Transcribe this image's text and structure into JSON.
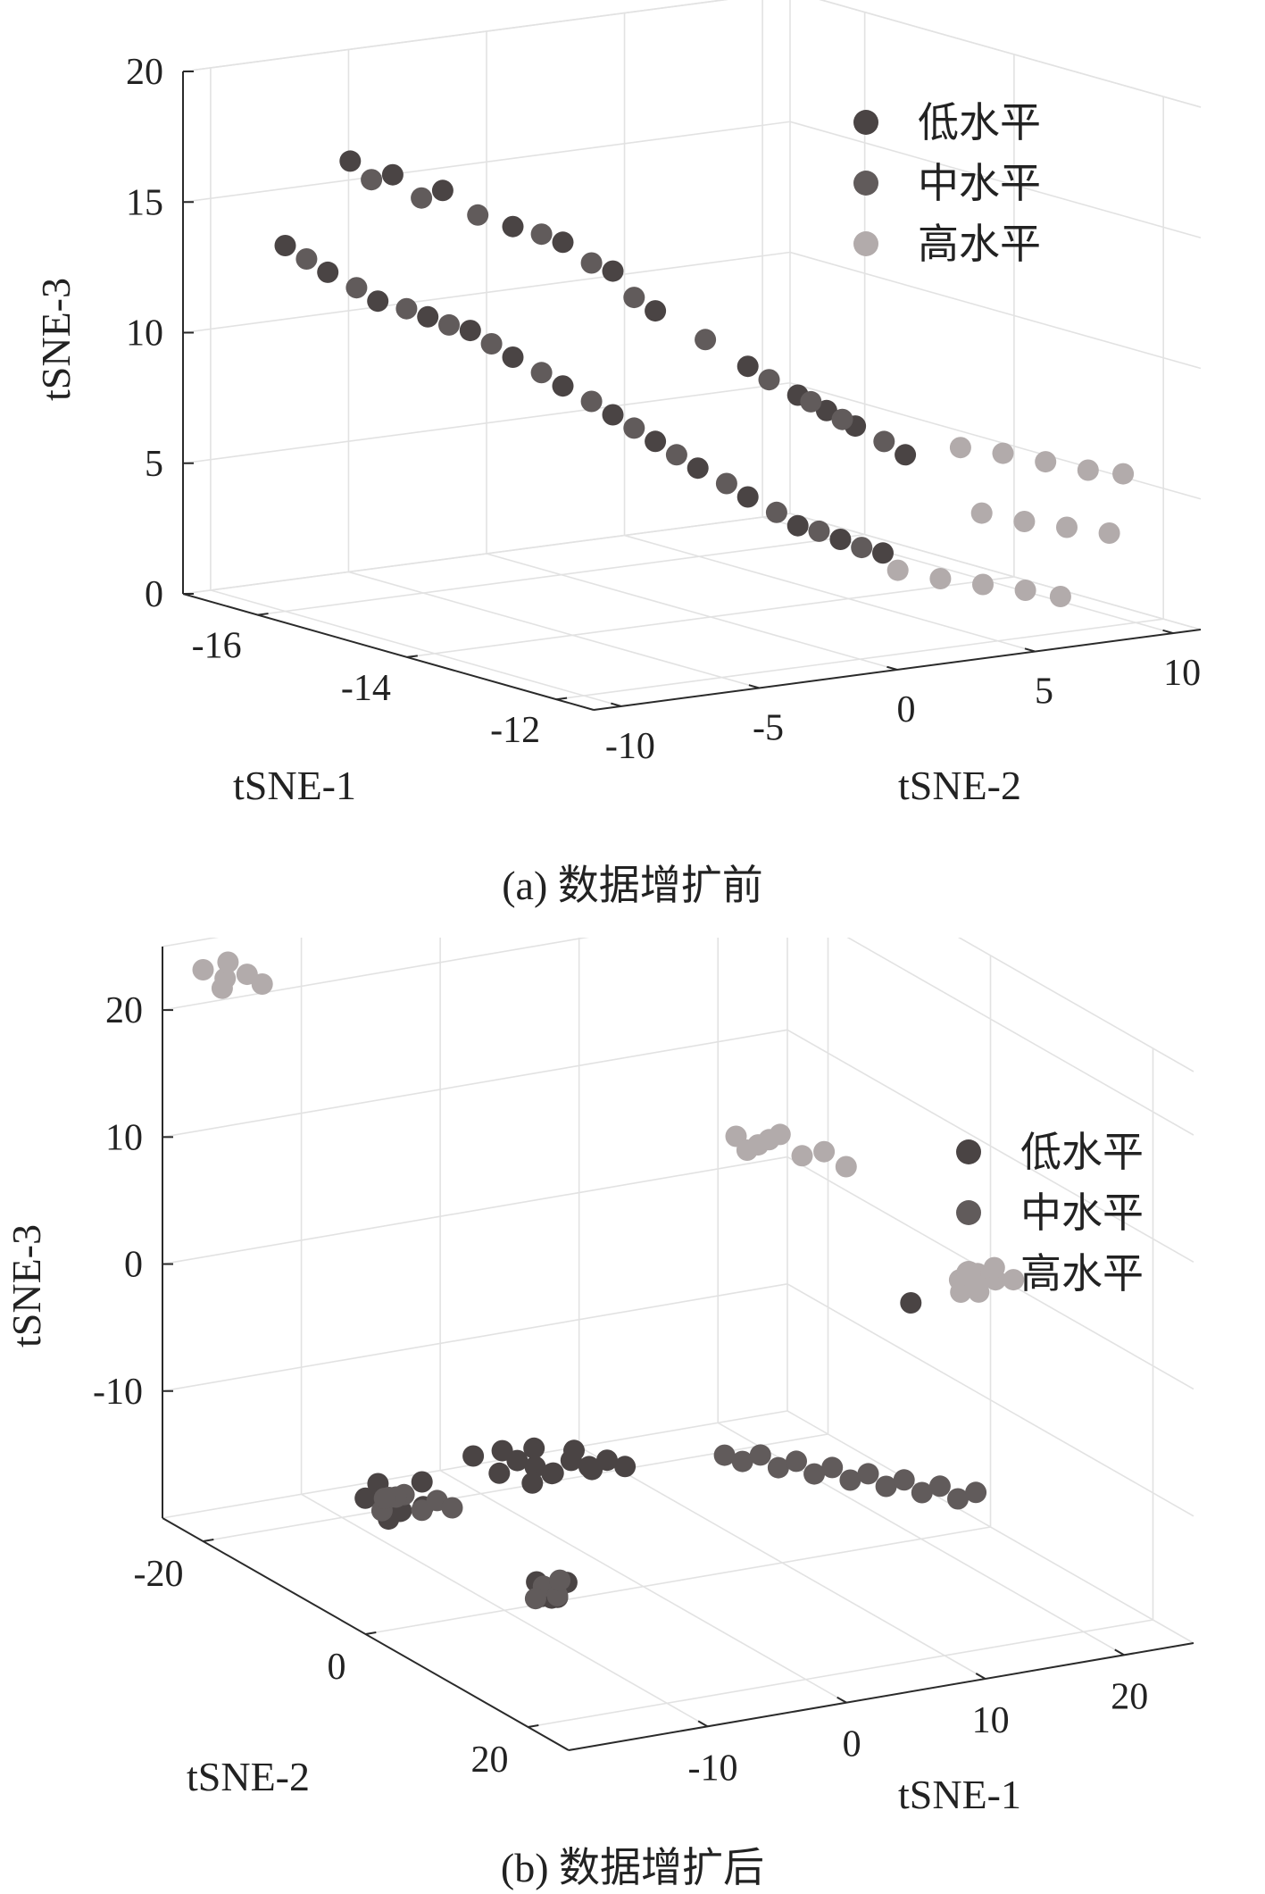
{
  "figures": [
    {
      "caption": "(a) 数据增扩前",
      "chart_data": {
        "type": "scatter3d",
        "xlabel": "tSNE-1",
        "ylabel": "tSNE-2",
        "zlabel": "tSNE-3",
        "xlim": [
          -17,
          -11.5
        ],
        "ylim": [
          -11,
          11
        ],
        "zlim": [
          0,
          20
        ],
        "xticks": [
          -16,
          -14,
          -12
        ],
        "yticks": [
          -10,
          -5,
          0,
          5,
          10
        ],
        "zticks": [
          0,
          5,
          10,
          15,
          20
        ],
        "grid": true,
        "legend_position": "top-right",
        "series": [
          {
            "name": "低水平",
            "color": "#4a4444",
            "points": [
              [
                -15.5,
                -9,
                17.5
              ],
              [
                -15.3,
                -8,
                17
              ],
              [
                -15,
                -7,
                16.5
              ],
              [
                -14.8,
                -5,
                15
              ],
              [
                -14.5,
                -4,
                14.5
              ],
              [
                -14.2,
                -3,
                13.5
              ],
              [
                -14,
                -2,
                12
              ],
              [
                -13.5,
                0,
                10
              ],
              [
                -13.2,
                1,
                9
              ],
              [
                -13,
                1.5,
                8.5
              ],
              [
                -12.8,
                2,
                8
              ],
              [
                -12.5,
                3,
                7
              ],
              [
                -16,
                -10,
                14
              ],
              [
                -15.8,
                -9,
                13
              ],
              [
                -15.5,
                -8,
                12
              ],
              [
                -15.2,
                -7,
                11.5
              ],
              [
                -15,
                -6,
                11
              ],
              [
                -14.8,
                -5,
                10
              ],
              [
                -14.5,
                -4,
                9
              ],
              [
                -14.2,
                -3,
                8
              ],
              [
                -14,
                -2,
                7
              ],
              [
                -13.8,
                -1,
                6
              ],
              [
                -13.5,
                0,
                5
              ],
              [
                -13.2,
                1,
                4
              ],
              [
                -13,
                2,
                3.5
              ],
              [
                -12.8,
                3,
                3
              ]
            ]
          },
          {
            "name": "中水平",
            "color": "#615b5b",
            "points": [
              [
                -15.4,
                -8.5,
                16.8
              ],
              [
                -15.1,
                -7.5,
                16.2
              ],
              [
                -14.9,
                -6,
                15.5
              ],
              [
                -14.6,
                -4.5,
                14.8
              ],
              [
                -14.3,
                -3.5,
                13.8
              ],
              [
                -14.1,
                -2.5,
                12.5
              ],
              [
                -13.7,
                -1,
                11
              ],
              [
                -13.4,
                0.5,
                9.5
              ],
              [
                -13.1,
                1.2,
                8.8
              ],
              [
                -12.9,
                1.8,
                8.2
              ],
              [
                -12.6,
                2.5,
                7.5
              ],
              [
                -15.9,
                -9.5,
                13.5
              ],
              [
                -15.6,
                -8.5,
                12.5
              ],
              [
                -15.3,
                -7.5,
                11.8
              ],
              [
                -15.1,
                -6.5,
                11.2
              ],
              [
                -14.9,
                -5.5,
                10.5
              ],
              [
                -14.6,
                -4.5,
                9.5
              ],
              [
                -14.3,
                -3.5,
                8.5
              ],
              [
                -14.1,
                -2.5,
                7.5
              ],
              [
                -13.9,
                -1.5,
                6.5
              ],
              [
                -13.6,
                -0.5,
                5.5
              ],
              [
                -13.3,
                0.5,
                4.5
              ],
              [
                -13.1,
                1.5,
                3.8
              ],
              [
                -12.9,
                2.5,
                3.2
              ]
            ]
          },
          {
            "name": "高水平",
            "color": "#b2abab",
            "points": [
              [
                -12.5,
                5,
                7
              ],
              [
                -12.3,
                6,
                6.8
              ],
              [
                -12.1,
                7,
                6.5
              ],
              [
                -11.9,
                8,
                6.2
              ],
              [
                -11.8,
                9,
                6
              ],
              [
                -12.4,
                5.5,
                4.5
              ],
              [
                -12.2,
                6.5,
                4.2
              ],
              [
                -12,
                7.5,
                4
              ],
              [
                -11.8,
                8.5,
                3.8
              ],
              [
                -12.6,
                3,
                2.5
              ],
              [
                -12.4,
                4,
                2.2
              ],
              [
                -12.2,
                5,
                2
              ],
              [
                -12,
                6,
                1.8
              ],
              [
                -11.9,
                7,
                1.5
              ]
            ]
          }
        ]
      }
    },
    {
      "caption": "(b) 数据增扩后",
      "chart_data": {
        "type": "scatter3d",
        "xlabel": "tSNE-1",
        "ylabel": "tSNE-2",
        "zlabel": "tSNE-3",
        "xlim": [
          -20,
          25
        ],
        "ylim": [
          -25,
          25
        ],
        "zlim": [
          -20,
          25
        ],
        "xticks": [
          -10,
          0,
          10,
          20
        ],
        "yticks": [
          -20,
          0,
          20
        ],
        "zticks": [
          -10,
          0,
          10,
          20
        ],
        "grid": true,
        "legend_position": "top-right",
        "series": [
          {
            "name": "低水平",
            "color": "#4a4444",
            "points": [
              [
                -12,
                5,
                -6
              ],
              [
                -11,
                5.5,
                -6.5
              ],
              [
                -10,
                6,
                -7
              ],
              [
                -9,
                6.5,
                -6
              ],
              [
                -8,
                7,
                -6.5
              ],
              [
                -7,
                7.5,
                -6
              ],
              [
                -6,
                8,
                -6.5
              ],
              [
                -13,
                4.5,
                -7
              ],
              [
                -12.5,
                4,
                -5.5
              ],
              [
                -11.5,
                6,
                -7.5
              ],
              [
                -14,
                3,
                -6
              ],
              [
                -10.5,
                4.5,
                -5.5
              ],
              [
                -9.5,
                5,
                -7.5
              ],
              [
                -8.5,
                6,
                -5.5
              ],
              [
                -7.5,
                6.5,
                -7
              ],
              [
                -12,
                -12,
                -15
              ],
              [
                -11,
                -11,
                -16
              ],
              [
                -10,
                -10,
                -15.5
              ],
              [
                -11.5,
                -13,
                -14.5
              ],
              [
                -10.5,
                -12,
                -16.5
              ],
              [
                -9.5,
                -11,
                -14
              ],
              [
                -12.5,
                -10,
                -16
              ],
              [
                -13,
                -12,
                -15
              ],
              [
                -3,
                -8,
                -22
              ],
              [
                -2.5,
                -7,
                -23
              ],
              [
                -2,
                -6,
                -21.5
              ],
              [
                -3.5,
                -6.5,
                -22.5
              ],
              [
                -1.5,
                -8,
                -23.5
              ],
              [
                14,
                9,
                3
              ]
            ]
          },
          {
            "name": "中水平",
            "color": "#615b5b",
            "points": [
              [
                0,
                10,
                -6
              ],
              [
                1,
                10.5,
                -6.5
              ],
              [
                2,
                11,
                -6
              ],
              [
                3,
                11.5,
                -7
              ],
              [
                4,
                12,
                -6.5
              ],
              [
                5,
                12.5,
                -7.5
              ],
              [
                6,
                13,
                -7
              ],
              [
                7,
                13.5,
                -8
              ],
              [
                8,
                14,
                -7.5
              ],
              [
                9,
                14.5,
                -8.5
              ],
              [
                10,
                15,
                -8
              ],
              [
                11,
                15.5,
                -9
              ],
              [
                12,
                16,
                -8.5
              ],
              [
                13,
                16.5,
                -9.5
              ],
              [
                14,
                17,
                -9
              ],
              [
                -11,
                -12.5,
                -15.5
              ],
              [
                -10.5,
                -11.5,
                -15
              ],
              [
                -9.8,
                -10.5,
                -16
              ],
              [
                -11.8,
                -12,
                -16.2
              ],
              [
                -10.2,
                -13,
                -15.8
              ],
              [
                -12.2,
                -11,
                -14.8
              ],
              [
                -9,
                -10,
                -15.2
              ],
              [
                -8.5,
                -9,
                -15.5
              ],
              [
                -2.8,
                -7.5,
                -22.2
              ],
              [
                -2.2,
                -6.8,
                -22.8
              ],
              [
                -1.8,
                -7.2,
                -21.8
              ],
              [
                -3.2,
                -7.8,
                -23.2
              ]
            ]
          },
          {
            "name": "高水平",
            "color": "#b2abab",
            "points": [
              [
                -20,
                -20,
                25
              ],
              [
                -19,
                -19,
                24.5
              ],
              [
                -18,
                -18,
                25
              ],
              [
                -19.5,
                -18.5,
                24
              ],
              [
                -18.5,
                -19.5,
                25.5
              ],
              [
                -17.5,
                -17,
                24.5
              ],
              [
                2,
                8,
                18
              ],
              [
                3,
                9,
                17.5
              ],
              [
                4,
                10,
                18.5
              ],
              [
                5,
                11,
                17
              ],
              [
                6,
                12,
                17.5
              ],
              [
                2.5,
                8.5,
                17
              ],
              [
                3.5,
                9.5,
                18
              ],
              [
                7,
                13,
                16.5
              ],
              [
                14,
                15,
                7
              ],
              [
                15,
                15.5,
                7.5
              ],
              [
                16,
                16,
                7
              ],
              [
                14.5,
                16.5,
                6.5
              ],
              [
                15.5,
                14.5,
                6
              ],
              [
                16.5,
                15,
                7.5
              ],
              [
                13.5,
                16,
                6.5
              ],
              [
                17,
                16.5,
                7
              ]
            ]
          }
        ]
      }
    }
  ]
}
